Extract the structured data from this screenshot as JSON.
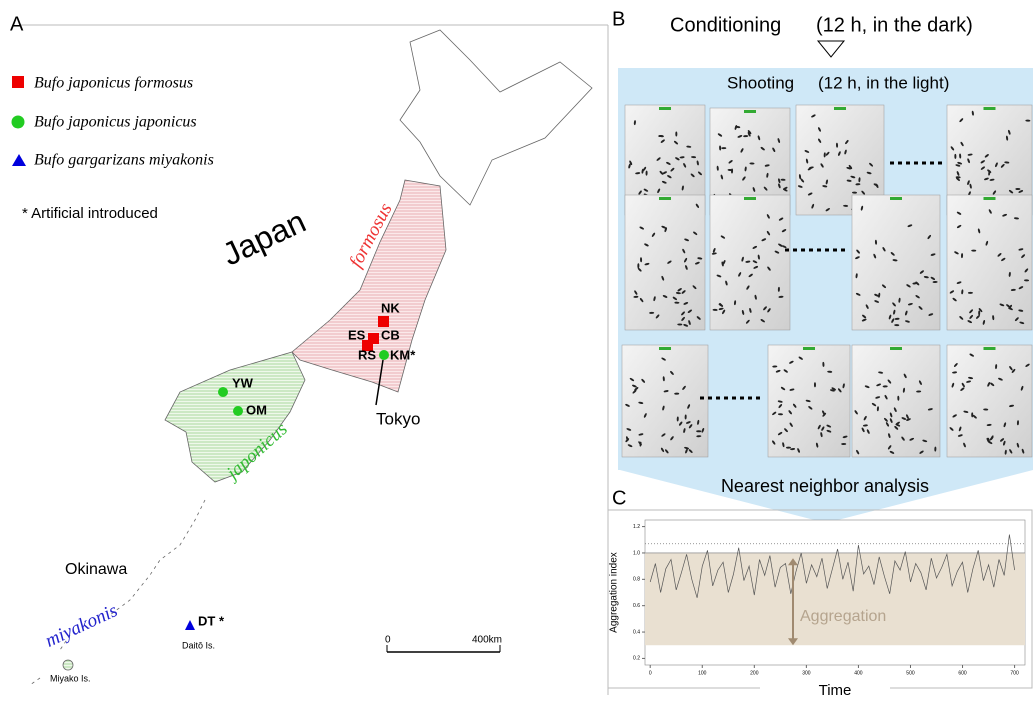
{
  "panel_a": {
    "letter": "A",
    "legend": [
      "Bufo japonicus  formosus",
      "Bufo japonicus japonicus",
      "Bufo gargarizans miyakonis"
    ],
    "note": "* Artificial introduced",
    "country": "Japan",
    "regions": [
      "formosus",
      "japonicus",
      "miyakonis"
    ],
    "places": [
      "Okinawa",
      "Tokyo",
      "Daitō Is.",
      "Miyako Is."
    ],
    "sites": [
      "NK",
      "ES",
      "CB",
      "RS",
      "KM*",
      "YW",
      "OM",
      "DT *"
    ],
    "scale": [
      "0",
      "400km"
    ]
  },
  "panel_b": {
    "letter": "B",
    "step1": "Conditioning",
    "step1_note": "(12 h, in the dark)",
    "step2": "Shooting",
    "step2_note": "(12 h, in the light)",
    "analysis": "Nearest neighbor analysis"
  },
  "chart_data": {
    "type": "line",
    "letter": "C",
    "y_label": "Aggregation index",
    "x_label": "Time",
    "annotation": "Aggregation",
    "x": [
      0,
      10,
      20,
      30,
      40,
      50,
      60,
      70,
      80,
      90,
      100,
      110,
      120,
      130,
      140,
      150,
      160,
      170,
      180,
      190,
      200,
      210,
      220,
      230,
      240,
      250,
      260,
      270,
      280,
      290,
      300,
      310,
      320,
      330,
      340,
      350,
      360,
      370,
      380,
      390,
      400,
      410,
      420,
      430,
      440,
      450,
      460,
      470,
      480,
      490,
      500,
      510,
      520,
      530,
      540,
      550,
      560,
      570,
      580,
      590,
      600,
      610,
      620,
      630,
      640,
      650,
      660,
      670,
      680,
      690,
      700
    ],
    "values": [
      0.78,
      0.92,
      0.7,
      0.88,
      0.95,
      0.72,
      0.85,
      0.99,
      0.8,
      0.66,
      0.9,
      1.02,
      0.75,
      0.87,
      0.93,
      0.7,
      0.84,
      1.04,
      0.79,
      0.9,
      0.68,
      0.95,
      0.83,
      0.98,
      0.74,
      0.89,
      0.92,
      0.69,
      0.86,
      1.0,
      0.77,
      0.91,
      0.82,
      0.96,
      0.73,
      0.88,
      1.03,
      0.8,
      0.93,
      0.71,
      1.06,
      0.84,
      0.9,
      0.76,
      0.97,
      0.82,
      0.69,
      0.94,
      0.87,
      1.01,
      0.78,
      0.92,
      0.85,
      0.72,
      0.96,
      0.81,
      0.89,
      0.99,
      0.75,
      0.86,
      0.93,
      0.7,
      0.88,
      1.02,
      0.79,
      0.91,
      0.74,
      0.95,
      0.83,
      1.14,
      0.87
    ],
    "color": "#555555",
    "xlim": [
      -10,
      720
    ],
    "ylim": [
      0.15,
      1.25
    ],
    "xticks": [
      0,
      100,
      200,
      300,
      400,
      500,
      600,
      700
    ],
    "yticks": [
      0.2,
      0.4,
      0.6,
      0.8,
      {
        "value": 1,
        "label": "1.0"
      },
      1.2
    ],
    "shaded_range": [
      0.3,
      1.0
    ],
    "reference_line": 1.0,
    "dotted_line": 1.07
  }
}
